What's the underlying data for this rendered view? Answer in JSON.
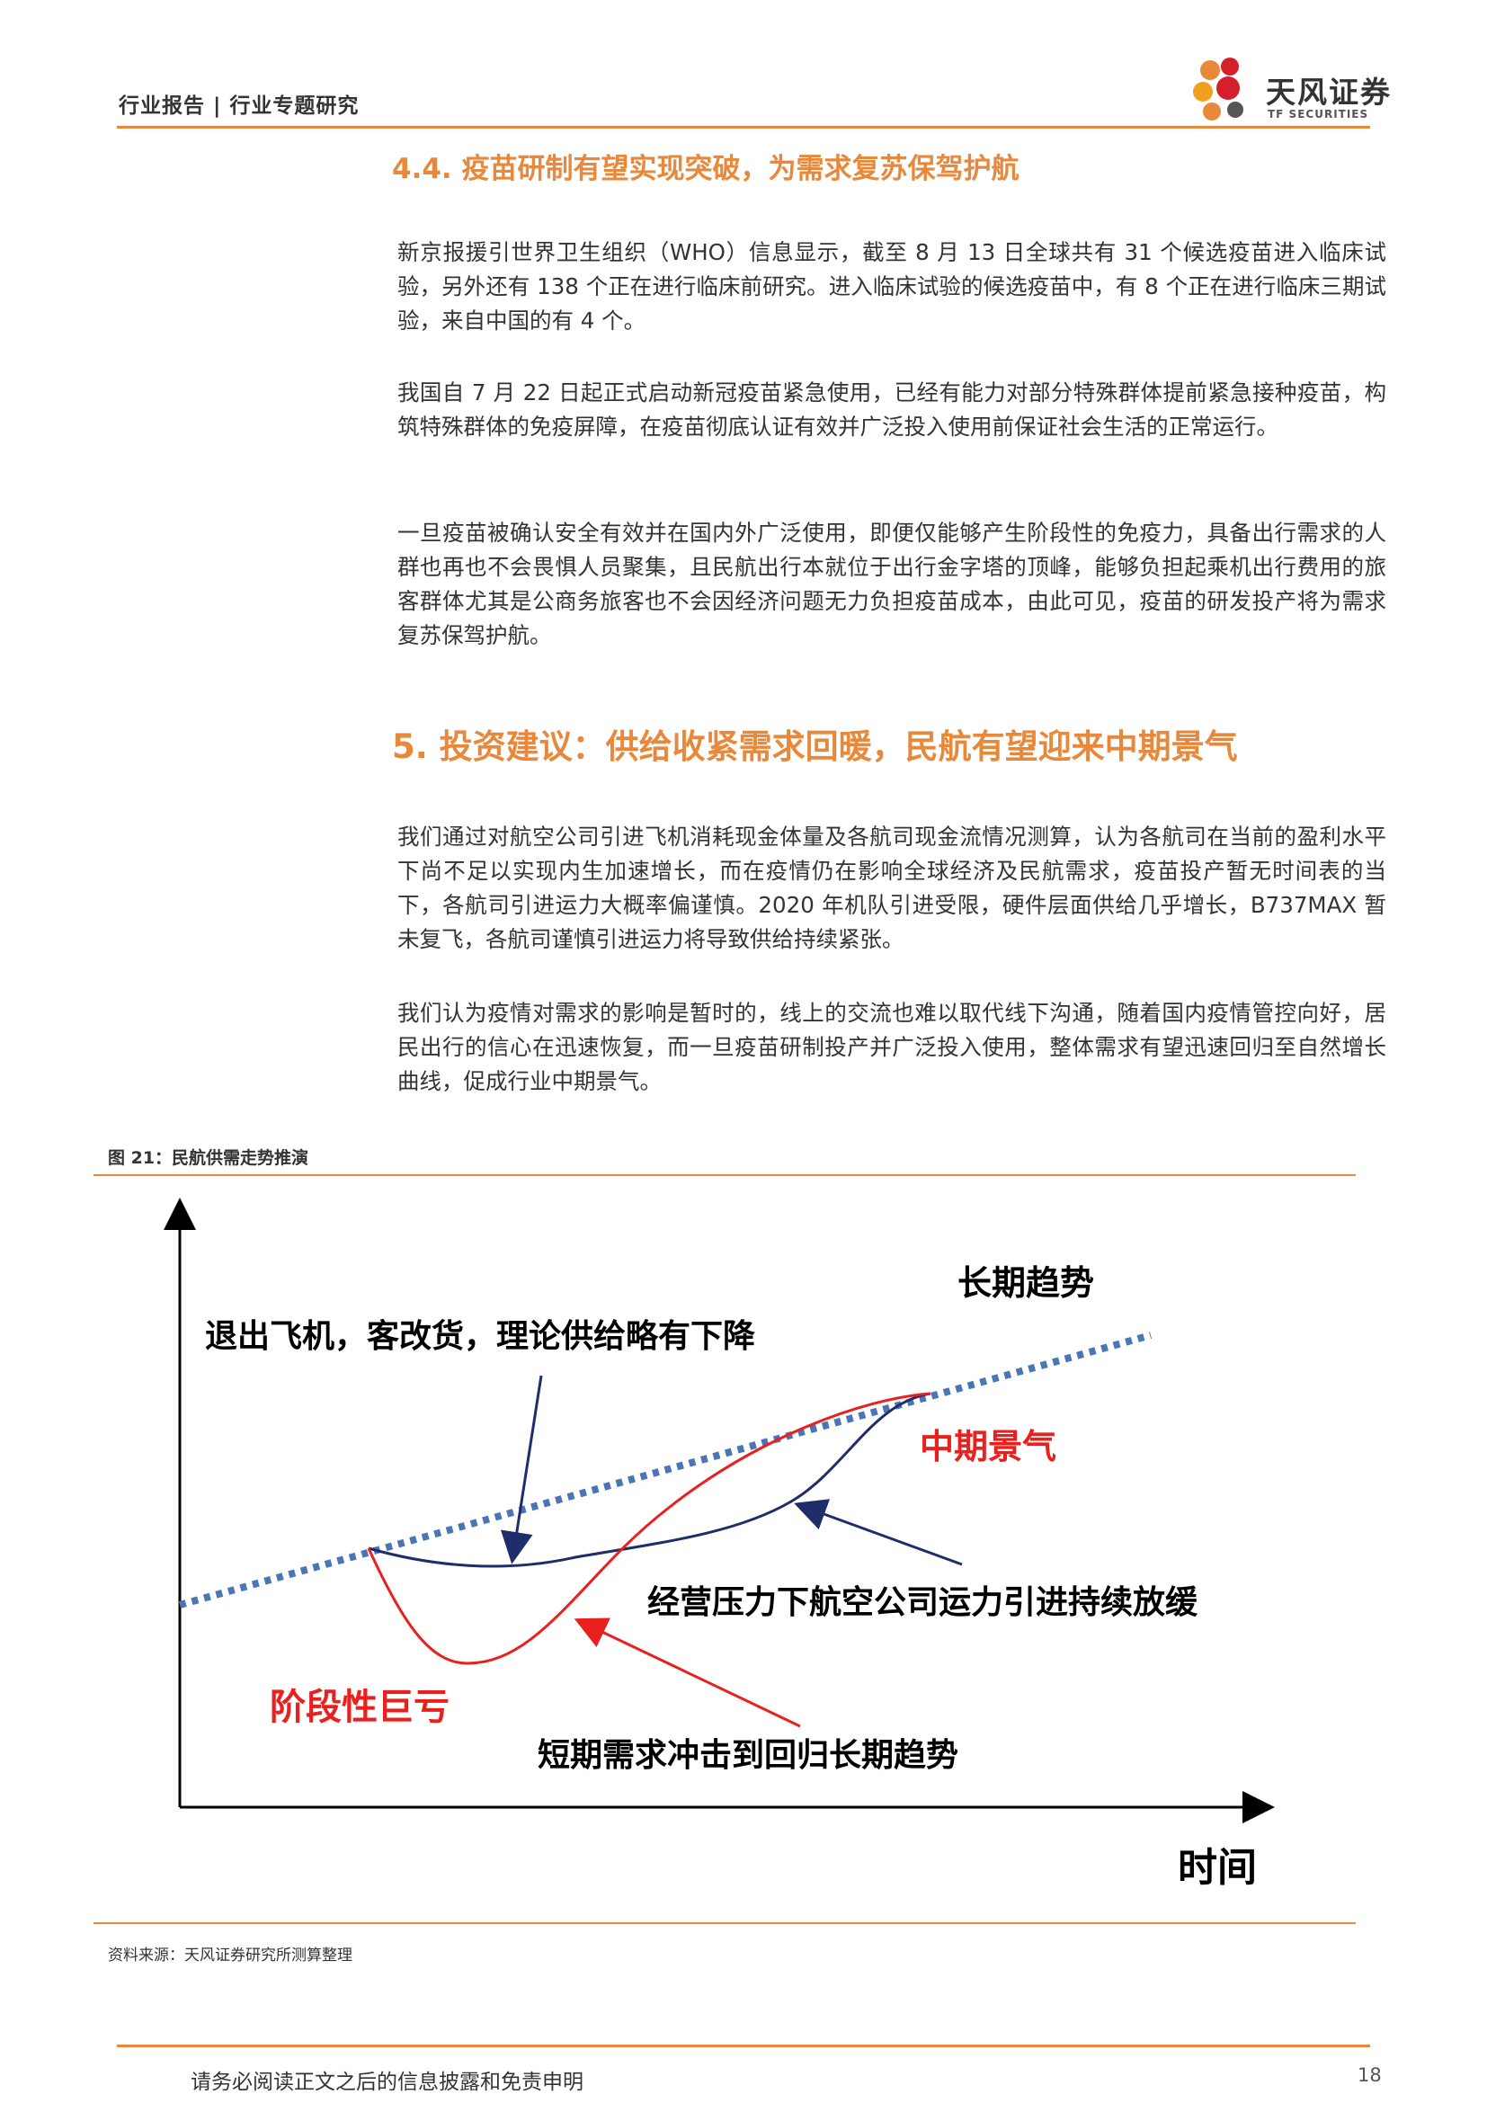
{
  "header": {
    "title": "行业报告 | 行业专题研究",
    "logo_cn": "天风证券",
    "logo_en": "TF SECURITIES"
  },
  "section_4_4": {
    "heading": "4.4. 疫苗研制有望实现突破，为需求复苏保驾护航",
    "paragraphs": [
      "新京报援引世界卫生组织（WHO）信息显示，截至 8 月 13 日全球共有 31 个候选疫苗进入临床试验，另外还有 138 个正在进行临床前研究。进入临床试验的候选疫苗中，有 8 个正在进行临床三期试验，来自中国的有 4 个。",
      "我国自 7 月 22 日起正式启动新冠疫苗紧急使用，已经有能力对部分特殊群体提前紧急接种疫苗，构筑特殊群体的免疫屏障，在疫苗彻底认证有效并广泛投入使用前保证社会生活的正常运行。",
      "一旦疫苗被确认安全有效并在国内外广泛使用，即便仅能够产生阶段性的免疫力，具备出行需求的人群也再也不会畏惧人员聚集，且民航出行本就位于出行金字塔的顶峰，能够负担起乘机出行费用的旅客群体尤其是公商务旅客也不会因经济问题无力负担疫苗成本，由此可见，疫苗的研发投产将为需求复苏保驾护航。"
    ]
  },
  "section_5": {
    "heading": "5. 投资建议：供给收紧需求回暖，民航有望迎来中期景气",
    "paragraphs": [
      "我们通过对航空公司引进飞机消耗现金体量及各航司现金流情况测算，认为各航司在当前的盈利水平下尚不足以实现内生加速增长，而在疫情仍在影响全球经济及民航需求，疫苗投产暂无时间表的当下，各航司引进运力大概率偏谨慎。2020 年机队引进受限，硬件层面供给几乎增长，B737MAX 暂未复飞，各航司谨慎引进运力将导致供给持续紧张。",
      "我们认为疫情对需求的影响是暂时的，线上的交流也难以取代线下沟通，随着国内疫情管控向好，居民出行的信心在迅速恢复，而一旦疫苗研制投产并广泛投入使用，整体需求有望迅速回归至自然增长曲线，促成行业中期景气。"
    ]
  },
  "figure": {
    "caption": "图 21：民航供需走势推演",
    "source": "资料来源：天风证券研究所测算整理",
    "labels": {
      "long_term_trend": "长期趋势",
      "supply_down": "退出飞机，客改货，理论供给略有下降",
      "mid_term_boom": "中期景气",
      "capacity_slowdown": "经营压力下航空公司运力引进持续放缓",
      "stage_loss": "阶段性巨亏",
      "short_term_shock": "短期需求冲击到回归长期趋势",
      "x_axis": "时间"
    },
    "colors": {
      "trend": "#4a76b5",
      "supply": "#1f2d6b",
      "demand": "#e8201e",
      "axis": "#000000",
      "red_text": "#e8201e"
    }
  },
  "footer": {
    "disclaimer": "请务必阅读正文之后的信息披露和免责申明",
    "page": "18"
  }
}
